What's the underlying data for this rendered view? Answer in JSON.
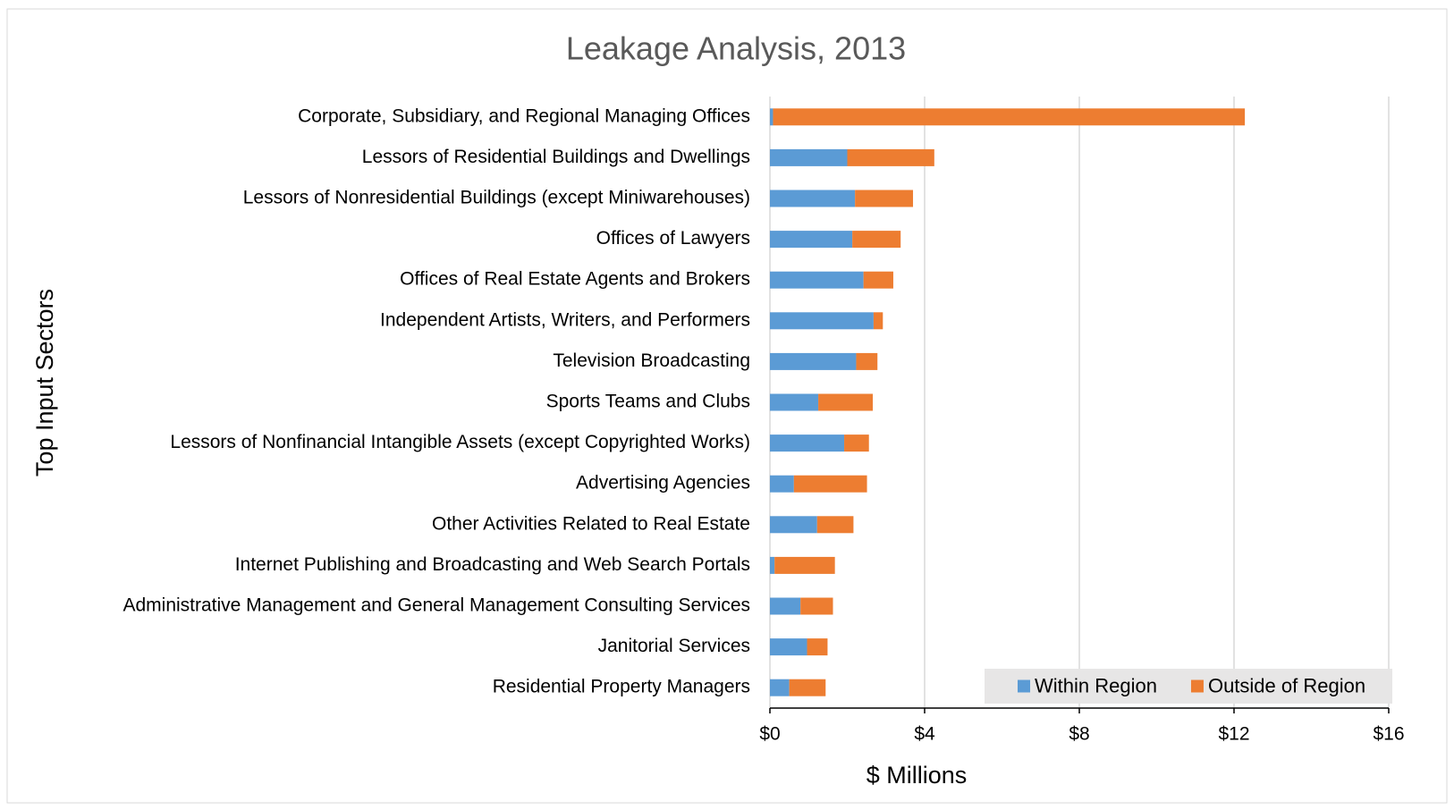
{
  "chart_data": {
    "type": "bar",
    "orientation": "horizontal",
    "stacked": true,
    "title": "Leakage Analysis, 2013",
    "x_label": "$ Millions",
    "y_label": "Top Input Sectors",
    "categories": [
      "Corporate, Subsidiary, and Regional Managing Offices",
      "Lessors of Residential Buildings and Dwellings",
      "Lessors of Nonresidential Buildings (except Miniwarehouses)",
      "Offices of Lawyers",
      "Offices of Real Estate Agents and Brokers",
      "Independent Artists, Writers, and Performers",
      "Television Broadcasting",
      "Sports Teams and Clubs",
      "Lessors of Nonfinancial Intangible Assets (except Copyrighted Works)",
      "Advertising Agencies",
      "Other Activities Related to Real Estate",
      "Internet Publishing and Broadcasting and Web Search Portals",
      "Administrative Management and General Management Consulting Services",
      "Janitorial Services",
      "Residential Property Managers"
    ],
    "series": [
      {
        "name": "Within Region",
        "color": "#5b9bd5",
        "values": [
          0.08,
          2.0,
          2.2,
          2.13,
          2.42,
          2.68,
          2.23,
          1.25,
          1.92,
          0.62,
          1.22,
          0.12,
          0.79,
          0.96,
          0.5
        ]
      },
      {
        "name": "Outside of Region",
        "color": "#ed7d31",
        "values": [
          12.2,
          2.25,
          1.5,
          1.25,
          0.77,
          0.24,
          0.55,
          1.41,
          0.64,
          1.89,
          0.94,
          1.56,
          0.84,
          0.53,
          0.94
        ]
      }
    ],
    "xlim": [
      0,
      16
    ],
    "xticks": [
      {
        "value": 0,
        "label": "$0"
      },
      {
        "value": 4,
        "label": "$4"
      },
      {
        "value": 8,
        "label": "$8"
      },
      {
        "value": 12,
        "label": "$12"
      },
      {
        "value": 16,
        "label": "$16"
      }
    ],
    "grid": true,
    "legend": "lower right"
  }
}
